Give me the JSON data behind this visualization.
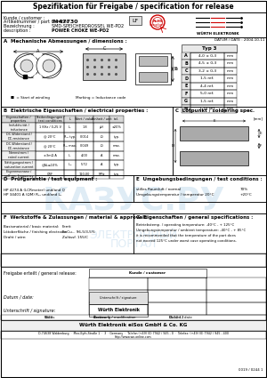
{
  "title": "Spezifikation für Freigabe / specification for release",
  "kunde_label": "Kunde / customer :",
  "artnr_label": "Artikelnummer / part number:",
  "artnr_value": "7447730",
  "bezeichnung_label": "Bezeichnung :",
  "bezeichnung_value": "SMD-SPEICHERDROSSEL WE-PD2",
  "description_label": "description :",
  "description_value": "POWER CHOKE WE-PD2",
  "lf_label": "LF",
  "datum_label": "DATUM / DATE : 2004-10-11",
  "section_a": "A  Mechanische Abmessungen / dimensions :",
  "typ_header": "Typ 3",
  "dim_labels": [
    "A",
    "B",
    "C",
    "D",
    "E",
    "F",
    "G",
    "H"
  ],
  "dim_values": [
    "4,0 ± 0,3",
    "4,5 ± 0,3",
    "3,2 ± 0,3",
    "1,5 ref.",
    "4,4 ref.",
    "5,0 ref.",
    "1,5 ref.",
    "1,75 ref."
  ],
  "section_b": "B  Elektrische Eigenschaften / electrical properties :",
  "section_c": "C  Lötpunkt / soldering spec.",
  "section_d": "D  Prüfgarantie / test equipment :",
  "section_e": "E  Umgebungsbedingungen / test conditions :",
  "section_f": "F  Werkstoffe & Zulassungen / material & approvals :",
  "section_g": "G  Eigenschaften / general specifications :",
  "freigabe_label": "Freigabe erteilt / general release:",
  "datum2_label": "Datum / date:",
  "unterschrift_label": "Unterschrift / signature:",
  "company_footer": "Würth Elektronik eiSos GmbH & Co. KG",
  "address_footer": "D-74638 Waldenburg  ·  Max-Eyth-Straße 1  ·  3  · Germany  ·  Telefon (+49) (0) 7942 / 945 - 0  ·  Telefax: (+49) (0) 7942 / 945 - 400",
  "url_footer": "http://www.we-online.com",
  "page_info": "0019 / 0244 1",
  "we_text": "WÜRTH ELEKTRONIK",
  "rohs_text": "RoHS\ncompliant",
  "bg_color": "#ffffff",
  "red_color": "#cc0000"
}
